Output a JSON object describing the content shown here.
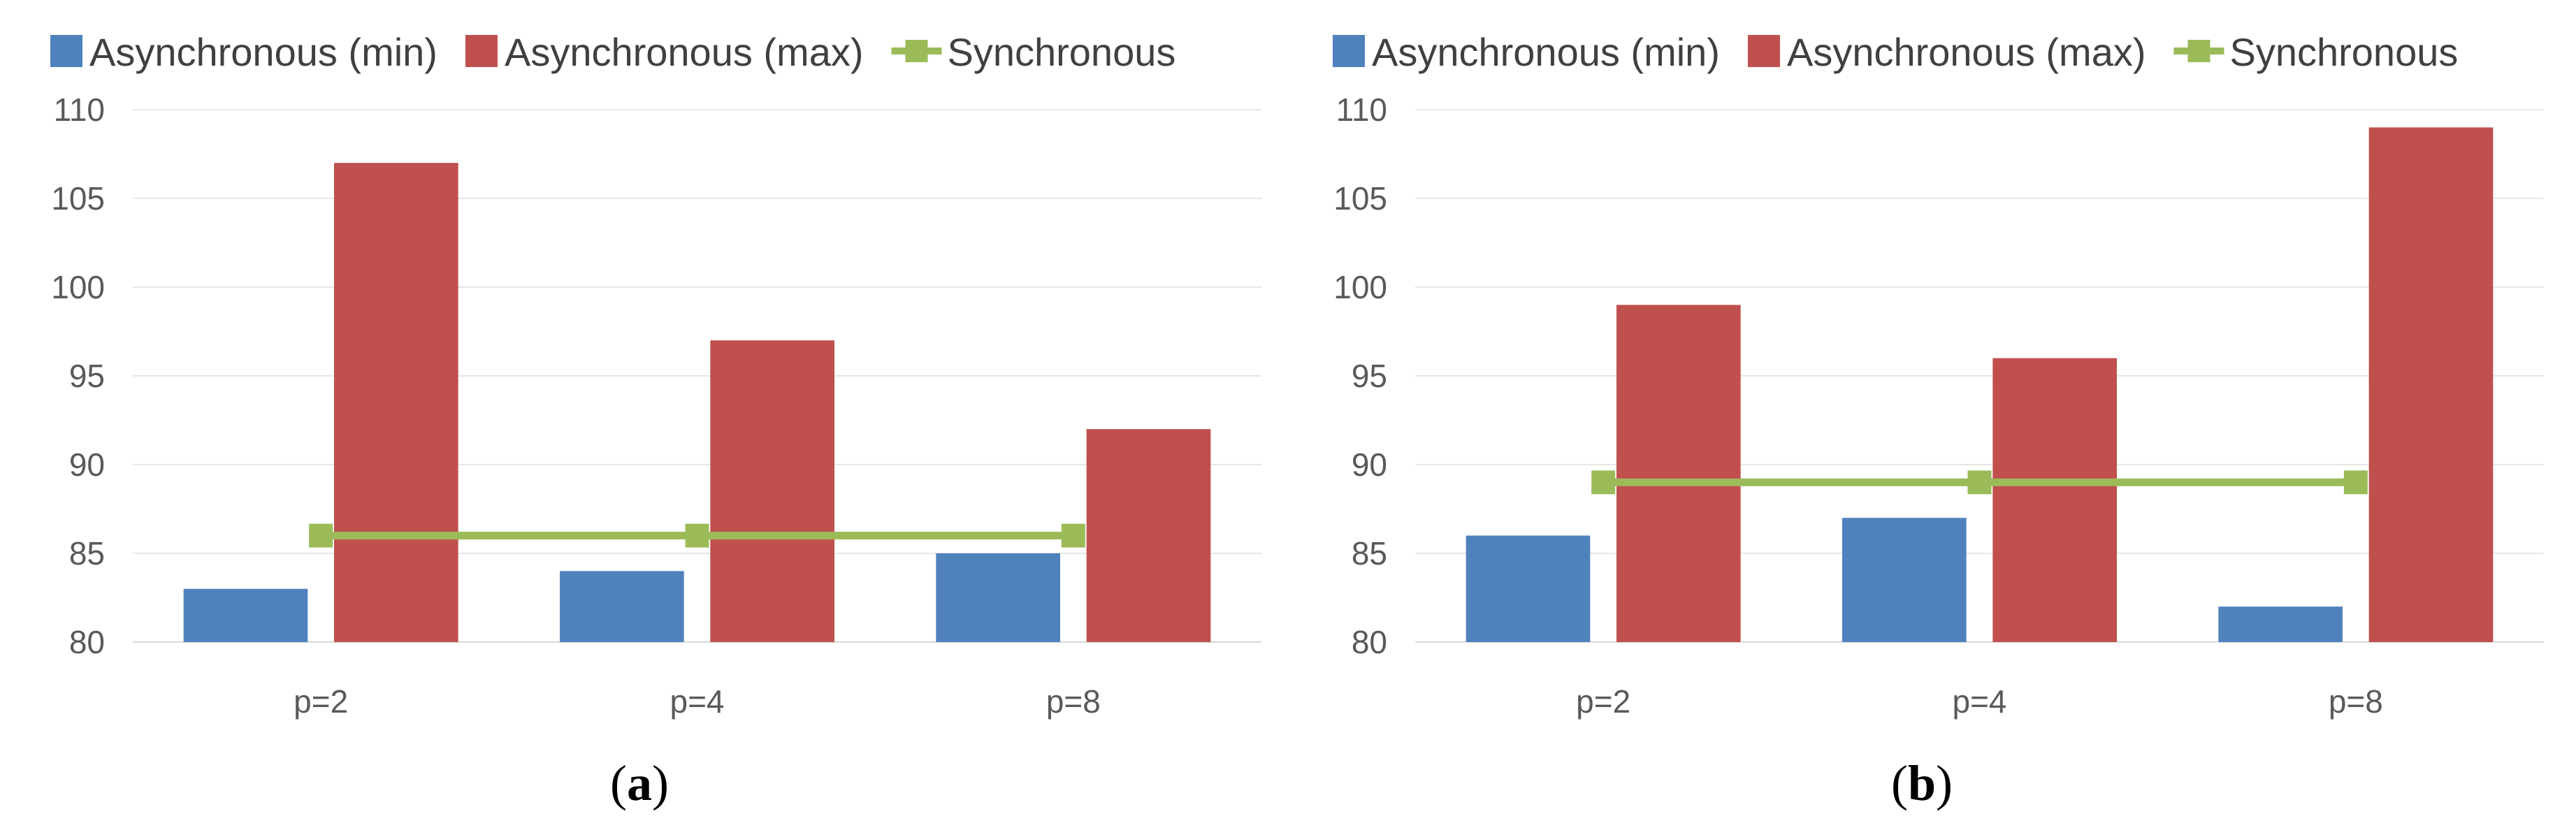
{
  "chart_data": [
    {
      "type": "bar",
      "panel_label": "a",
      "categories": [
        "p=2",
        "p=4",
        "p=8"
      ],
      "series": [
        {
          "name": "Asynchronous (min)",
          "type": "bar",
          "values": [
            83,
            84,
            85
          ],
          "color": "#4f81bd"
        },
        {
          "name": "Asynchronous (max)",
          "type": "bar",
          "values": [
            107,
            97,
            92
          ],
          "color": "#c0504d"
        },
        {
          "name": "Synchronous",
          "type": "line",
          "values": [
            86,
            86,
            86
          ],
          "color": "#9bbb59"
        }
      ],
      "ylim": [
        80,
        110
      ],
      "yticks": [
        80,
        85,
        90,
        95,
        100,
        105,
        110
      ],
      "grid": true,
      "legend": "top"
    },
    {
      "type": "bar",
      "panel_label": "b",
      "categories": [
        "p=2",
        "p=4",
        "p=8"
      ],
      "series": [
        {
          "name": "Asynchronous (min)",
          "type": "bar",
          "values": [
            86,
            87,
            82
          ],
          "color": "#4f81bd"
        },
        {
          "name": "Asynchronous (max)",
          "type": "bar",
          "values": [
            99,
            96,
            109
          ],
          "color": "#c0504d"
        },
        {
          "name": "Synchronous",
          "type": "line",
          "values": [
            89,
            89,
            89
          ],
          "color": "#9bbb59"
        }
      ],
      "ylim": [
        80,
        110
      ],
      "yticks": [
        80,
        85,
        90,
        95,
        100,
        105,
        110
      ],
      "grid": true,
      "legend": "top"
    }
  ]
}
